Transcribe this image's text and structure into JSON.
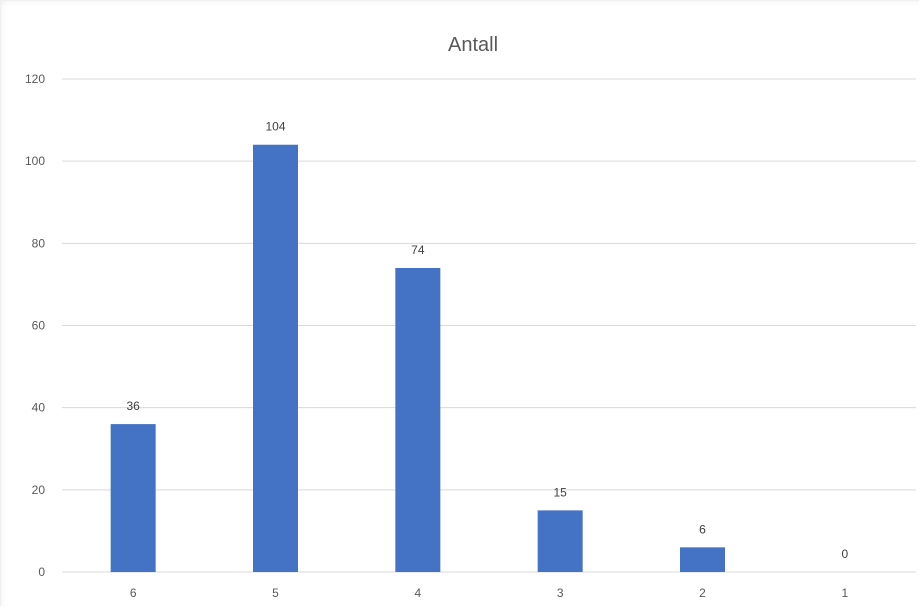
{
  "chart_data": {
    "type": "bar",
    "title": "Antall",
    "xlabel": "",
    "ylabel": "",
    "categories": [
      "6",
      "5",
      "4",
      "3",
      "2",
      "1"
    ],
    "values": [
      36,
      104,
      74,
      15,
      6,
      0
    ],
    "data_labels": [
      "36",
      "104",
      "74",
      "15",
      "6",
      "0"
    ],
    "ylim": [
      0,
      120
    ],
    "yticks": [
      0,
      20,
      40,
      60,
      80,
      100,
      120
    ],
    "ytick_labels": [
      "0",
      "20",
      "40",
      "60",
      "80",
      "100",
      "120"
    ],
    "grid": true,
    "legend": "none",
    "bar_color": "#4472C4",
    "gridline_color": "#d9d9d9"
  }
}
